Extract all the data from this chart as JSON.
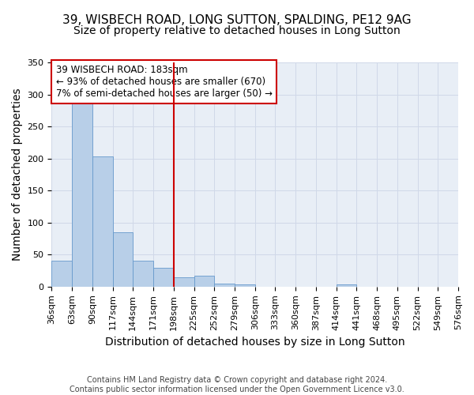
{
  "title1": "39, WISBECH ROAD, LONG SUTTON, SPALDING, PE12 9AG",
  "title2": "Size of property relative to detached houses in Long Sutton",
  "xlabel": "Distribution of detached houses by size in Long Sutton",
  "ylabel": "Number of detached properties",
  "footer1": "Contains HM Land Registry data © Crown copyright and database right 2024.",
  "footer2": "Contains public sector information licensed under the Open Government Licence v3.0.",
  "bar_values": [
    40,
    290,
    203,
    85,
    41,
    29,
    15,
    17,
    5,
    4,
    0,
    0,
    0,
    0,
    3,
    0,
    0,
    0,
    0,
    0
  ],
  "bin_edges": [
    36,
    63,
    90,
    117,
    144,
    171,
    198,
    225,
    252,
    279,
    306,
    333,
    360,
    387,
    414,
    441,
    468,
    495,
    522,
    549,
    576
  ],
  "tick_labels": [
    "36sqm",
    "63sqm",
    "90sqm",
    "117sqm",
    "144sqm",
    "171sqm",
    "198sqm",
    "225sqm",
    "252sqm",
    "279sqm",
    "306sqm",
    "333sqm",
    "360sqm",
    "387sqm",
    "414sqm",
    "441sqm",
    "468sqm",
    "495sqm",
    "522sqm",
    "549sqm",
    "576sqm"
  ],
  "bar_color": "#b8cfe8",
  "bar_edge_color": "#6699cc",
  "vline_position": 6,
  "vline_color": "#cc0000",
  "annotation_text": "39 WISBECH ROAD: 183sqm\n← 93% of detached houses are smaller (670)\n7% of semi-detached houses are larger (50) →",
  "annotation_box_color": "#ffffff",
  "annotation_box_edge": "#cc0000",
  "ylim": [
    0,
    350
  ],
  "yticks": [
    0,
    50,
    100,
    150,
    200,
    250,
    300,
    350
  ],
  "grid_color": "#d0d8e8",
  "bg_color": "#e8eef6",
  "title_fontsize": 11,
  "subtitle_fontsize": 10,
  "axis_label_fontsize": 10,
  "tick_fontsize": 8,
  "footer_fontsize": 7
}
